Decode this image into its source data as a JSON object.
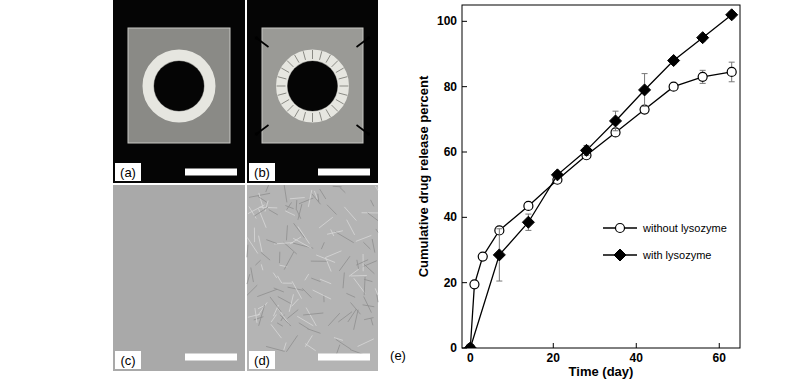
{
  "panels": [
    "(a)",
    "(b)",
    "(c)",
    "(d)",
    "(e)"
  ],
  "chart_data": {
    "type": "line",
    "x_label": "Time (day)",
    "y_label": "Cumulative drug release percent",
    "xlim": [
      -2,
      65
    ],
    "xticks": [
      0,
      20,
      40,
      60
    ],
    "ylim": [
      0,
      105
    ],
    "yticks": [
      0,
      20,
      40,
      60,
      80,
      100
    ],
    "grid": false,
    "legend": "right",
    "series": [
      {
        "name": "without lysozyme",
        "color": "#000000",
        "marker": "circle",
        "line_style": "solid",
        "x": [
          0,
          1,
          3,
          7,
          14,
          21,
          28,
          35,
          42,
          49,
          56,
          63
        ],
        "values": [
          0,
          19.5,
          28,
          36,
          43.5,
          51.5,
          59,
          66,
          73,
          80,
          83,
          84.5
        ],
        "errors": [
          null,
          null,
          null,
          null,
          null,
          1,
          1,
          1,
          1,
          1,
          2,
          3
        ]
      },
      {
        "name": "with lysozyme",
        "color": "#000000",
        "marker": "diamond",
        "line_style": "solid",
        "x": [
          0,
          7,
          14,
          21,
          28,
          35,
          42,
          49,
          56,
          63
        ],
        "values": [
          0,
          28.5,
          38.5,
          53,
          60.5,
          69.5,
          79,
          88,
          95,
          102
        ],
        "errors": [
          null,
          8,
          2.5,
          1,
          1.5,
          3,
          5,
          1,
          1,
          1
        ]
      }
    ]
  }
}
